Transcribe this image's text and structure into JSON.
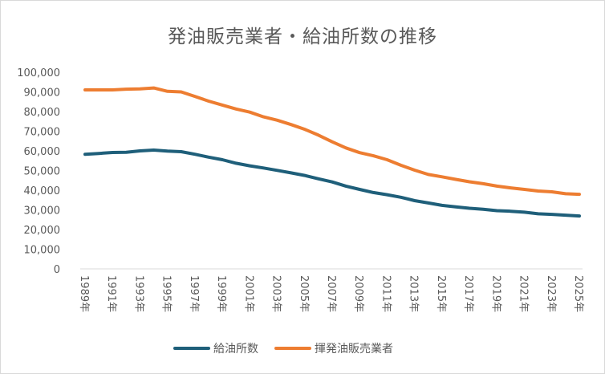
{
  "chart_data": {
    "type": "line",
    "title": "発油販売業者・給油所数の推移",
    "ylim": [
      0,
      100000
    ],
    "y_ticks": [
      "0",
      "10,000",
      "20,000",
      "30,000",
      "40,000",
      "50,000",
      "60,000",
      "70,000",
      "80,000",
      "90,000",
      "100,000"
    ],
    "x_ticks": [
      "1989年",
      "1991年",
      "1993年",
      "1995年",
      "1997年",
      "1999年",
      "2001年",
      "2003年",
      "2005年",
      "2007年",
      "2009年",
      "2011年",
      "2013年",
      "2015年",
      "2017年",
      "2019年",
      "2021年",
      "2023年",
      "2025年"
    ],
    "x": [
      1989,
      1990,
      1991,
      1992,
      1993,
      1994,
      1995,
      1996,
      1997,
      1998,
      1999,
      2000,
      2001,
      2002,
      2003,
      2004,
      2005,
      2006,
      2007,
      2008,
      2009,
      2010,
      2011,
      2012,
      2013,
      2014,
      2015,
      2016,
      2017,
      2018,
      2019,
      2020,
      2021,
      2022,
      2023,
      2024,
      2025
    ],
    "grid": false,
    "legend_position": "bottom",
    "series": [
      {
        "name": "給油所数",
        "color": "#1f5f7a",
        "values": [
          58300,
          58700,
          59200,
          59300,
          60000,
          60400,
          59900,
          59600,
          58300,
          56800,
          55500,
          53700,
          52400,
          51300,
          50100,
          48800,
          47500,
          45800,
          44200,
          42100,
          40400,
          38800,
          37700,
          36400,
          34700,
          33500,
          32300,
          31500,
          30800,
          30300,
          29600,
          29300,
          28800,
          28000,
          27700,
          27300,
          26900
        ]
      },
      {
        "name": "揮発油販売業者",
        "color": "#ed7d31",
        "values": [
          91000,
          91000,
          91000,
          91400,
          91500,
          92000,
          90300,
          90000,
          87700,
          85300,
          83300,
          81300,
          79700,
          77300,
          75600,
          73400,
          71000,
          68000,
          64600,
          61500,
          59100,
          57500,
          55500,
          52700,
          50200,
          48000,
          46800,
          45500,
          44300,
          43300,
          42100,
          41200,
          40400,
          39600,
          39200,
          38200,
          37900
        ]
      }
    ]
  }
}
